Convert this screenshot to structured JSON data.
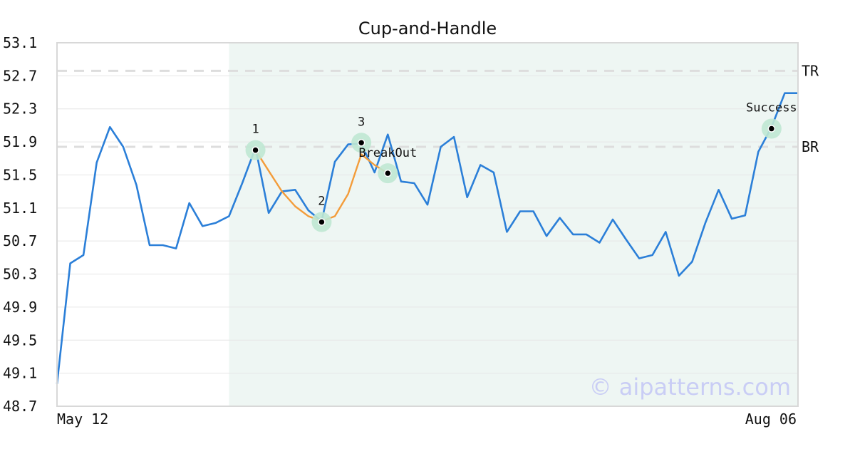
{
  "chart_data": {
    "type": "line",
    "title": "Cup-and-Handle",
    "xlabel": "",
    "ylabel": "",
    "ylim": [
      48.7,
      53.1
    ],
    "y_ticks": [
      "53.1",
      "52.7",
      "52.3",
      "51.9",
      "51.5",
      "51.1",
      "50.7",
      "50.3",
      "49.9",
      "49.5",
      "49.1",
      "48.7"
    ],
    "x_tick_labels": [
      "May 12",
      "Aug 06"
    ],
    "grid": true,
    "series": [
      {
        "color": "#2b7fd8",
        "values": [
          48.97,
          50.43,
          50.53,
          51.65,
          52.08,
          51.84,
          51.38,
          50.65,
          50.65,
          50.61,
          51.16,
          50.88,
          50.92,
          51.0,
          51.4,
          51.83,
          51.04,
          51.3,
          51.32,
          51.07,
          50.94,
          51.66,
          51.87,
          51.88,
          51.53,
          51.99,
          51.42,
          51.4,
          51.14,
          51.84,
          51.96,
          51.23,
          51.62,
          51.53,
          50.81,
          51.06,
          51.06,
          50.76,
          50.98,
          50.78,
          50.78,
          50.68,
          50.96,
          50.72,
          50.49,
          50.53,
          50.81,
          50.28,
          50.45,
          50.92,
          51.32,
          50.97,
          51.01,
          51.78,
          52.08,
          52.49,
          52.49
        ]
      },
      {
        "color": "#f39c3a",
        "x_start": 15,
        "values": [
          51.8,
          51.55,
          51.3,
          51.12,
          51.0,
          50.94,
          51.0,
          51.27,
          51.75,
          51.62,
          51.52
        ]
      }
    ],
    "levels": [
      {
        "label": "TR",
        "value": 52.76
      },
      {
        "label": "BR",
        "value": 51.84
      }
    ],
    "shaded_region": {
      "x_start": 13,
      "x_end": 56,
      "color": "#eef6f3"
    },
    "markers": [
      {
        "label": "1",
        "x": 15,
        "y": 51.8
      },
      {
        "label": "2",
        "x": 20,
        "y": 50.93
      },
      {
        "label": "3",
        "x": 23,
        "y": 51.89
      },
      {
        "label": "BreakOut",
        "x": 25,
        "y": 51.52
      },
      {
        "label": "Success",
        "x": 54,
        "y": 52.06
      }
    ],
    "watermark": "© aipatterns.com"
  }
}
